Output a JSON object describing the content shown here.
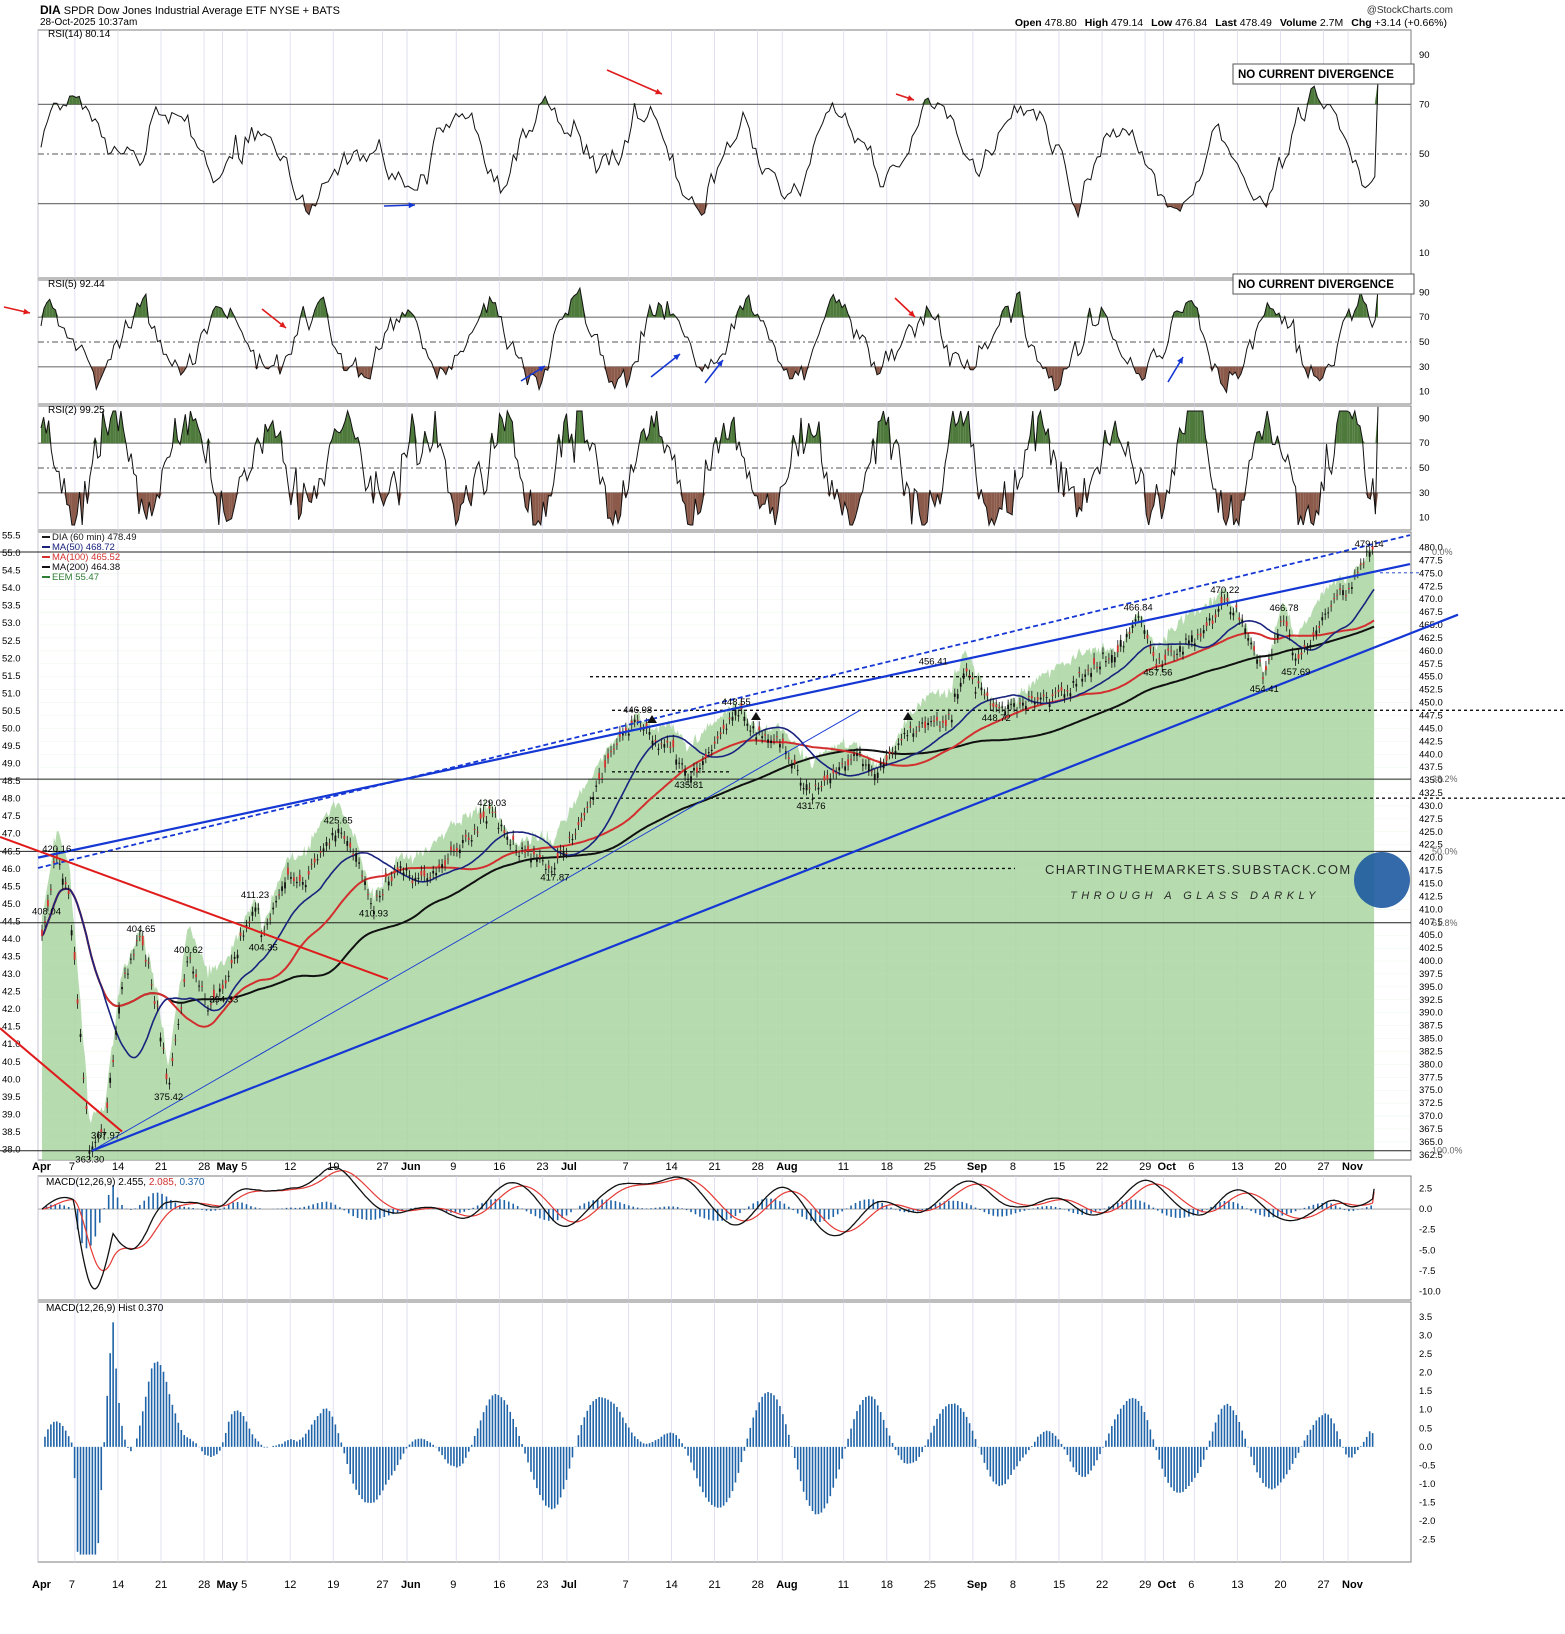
{
  "header": {
    "symbol": "DIA",
    "name": "SPDR Dow Jones Industrial Average ETF",
    "exchange": "NYSE + BATS",
    "timestamp": "28-Oct-2025 10:37am",
    "provider": "@StockCharts.com",
    "quote": [
      {
        "label": "Open",
        "value": "478.80"
      },
      {
        "label": "High",
        "value": "479.14"
      },
      {
        "label": "Low",
        "value": "476.84"
      },
      {
        "label": "Last",
        "value": "478.49"
      },
      {
        "label": "Volume",
        "value": "2.7M"
      },
      {
        "label": "Chg",
        "value": "+3.14 (+0.66%)"
      }
    ]
  },
  "x_axis": {
    "labels": [
      "Apr",
      "7",
      "14",
      "21",
      "28",
      "May",
      "5",
      "12",
      "19",
      "27",
      "Jun",
      "9",
      "16",
      "23",
      "Jul",
      "7",
      "14",
      "21",
      "28",
      "Aug",
      "11",
      "18",
      "25",
      "Sep",
      "8",
      "15",
      "22",
      "29",
      "Oct",
      "6",
      "13",
      "20",
      "27",
      "Nov"
    ],
    "bold": [
      "Apr",
      "May",
      "Jun",
      "Jul",
      "Aug",
      "Sep",
      "Oct",
      "Nov"
    ]
  },
  "annotations": {
    "divergence_note": "NO CURRENT DIVERGENCE",
    "watermark_site": "CHARTINGTHEMARKETS.SUBSTACK.COM",
    "watermark_tag": "THROUGH A GLASS DARKLY"
  },
  "chart_data": [
    {
      "type": "line",
      "id": "rsi14",
      "legend": "RSI(14) 80.14",
      "ylim": [
        0,
        100
      ],
      "ticks": [
        10,
        30,
        50,
        70,
        90
      ],
      "levels": [
        30,
        50,
        70
      ],
      "last": 80.14
    },
    {
      "type": "line",
      "id": "rsi5",
      "legend": "RSI(5) 92.44",
      "ylim": [
        0,
        100
      ],
      "ticks": [
        10,
        30,
        50,
        70,
        90
      ],
      "levels": [
        30,
        50,
        70
      ],
      "last": 92.44
    },
    {
      "type": "line",
      "id": "rsi2",
      "legend": "RSI(2) 99.25",
      "ylim": [
        0,
        100
      ],
      "ticks": [
        10,
        30,
        50,
        70,
        90
      ],
      "levels": [
        30,
        50,
        70
      ],
      "last": 99.25
    },
    {
      "type": "line",
      "id": "price",
      "ylim": [
        361.5,
        483
      ],
      "right_ticks": [
        "362.5",
        "365.0",
        "367.5",
        "370.0",
        "372.5",
        "375.0",
        "377.5",
        "380.0",
        "382.5",
        "385.0",
        "387.5",
        "390.0",
        "392.5",
        "395.0",
        "397.5",
        "400.0",
        "402.5",
        "405.0",
        "407.5",
        "410.0",
        "412.5",
        "415.0",
        "417.5",
        "420.0",
        "422.5",
        "425.0",
        "427.5",
        "430.0",
        "432.5",
        "435.0",
        "437.5",
        "440.0",
        "442.5",
        "445.0",
        "447.5",
        "450.0",
        "452.5",
        "455.0",
        "457.5",
        "460.0",
        "462.5",
        "465.0",
        "467.5",
        "470.0",
        "472.5",
        "475.0",
        "477.5",
        "480.0"
      ],
      "left_ticks": [
        "38.0",
        "38.5",
        "39.0",
        "39.5",
        "40.0",
        "40.5",
        "41.0",
        "41.5",
        "42.0",
        "42.5",
        "43.0",
        "43.5",
        "44.0",
        "44.5",
        "45.0",
        "45.5",
        "46.0",
        "46.5",
        "47.0",
        "47.5",
        "48.0",
        "48.5",
        "49.0",
        "49.5",
        "50.0",
        "50.5",
        "51.0",
        "51.5",
        "52.0",
        "52.5",
        "53.0",
        "53.5",
        "54.0",
        "54.5",
        "55.0",
        "55.5"
      ],
      "left_ylim": [
        37.7,
        55.6
      ],
      "legend": [
        {
          "label": "DIA (60 min) 478.49",
          "color": "#1a1a1a"
        },
        {
          "label": "MA(50) 468.72",
          "color": "#1a237e"
        },
        {
          "label": "MA(100) 465.52",
          "color": "#d32f2f"
        },
        {
          "label": "MA(200) 464.38",
          "color": "#111111"
        },
        {
          "label": "EEM 55.47",
          "color": "#2e7d32"
        }
      ],
      "fib_levels": [
        {
          "label": "0.0%",
          "value": 479.14
        },
        {
          "label": "38.2%",
          "value": 435.2
        },
        {
          "label": "50.0%",
          "value": 421.2
        },
        {
          "label": "61.8%",
          "value": 407.4
        },
        {
          "label": "100.0%",
          "value": 363.3
        }
      ],
      "swing_labels": [
        {
          "text": "363.30",
          "x": 6.0,
          "y": 363.3
        },
        {
          "text": "367.97",
          "x": 8.0,
          "y": 367.97
        },
        {
          "text": "408.04",
          "x": 0.5,
          "y": 408.04
        },
        {
          "text": "420.16",
          "x": 1.8,
          "y": 420.16
        },
        {
          "text": "404.65",
          "x": 12.5,
          "y": 404.65
        },
        {
          "text": "400.62",
          "x": 18.5,
          "y": 400.62
        },
        {
          "text": "375.42",
          "x": 16.0,
          "y": 375.42
        },
        {
          "text": "394.33",
          "x": 23.0,
          "y": 394.33
        },
        {
          "text": "411.23",
          "x": 27.0,
          "y": 411.23
        },
        {
          "text": "404.35",
          "x": 28.0,
          "y": 404.35
        },
        {
          "text": "425.65",
          "x": 37.5,
          "y": 425.65
        },
        {
          "text": "410.93",
          "x": 42.0,
          "y": 410.93
        },
        {
          "text": "429.03",
          "x": 57.0,
          "y": 429.03
        },
        {
          "text": "417.87",
          "x": 65.0,
          "y": 417.87
        },
        {
          "text": "446.98",
          "x": 75.5,
          "y": 446.98
        },
        {
          "text": "435.81",
          "x": 82.0,
          "y": 435.81
        },
        {
          "text": "448.55",
          "x": 88.0,
          "y": 448.55
        },
        {
          "text": "431.76",
          "x": 97.5,
          "y": 431.76
        },
        {
          "text": "456.41",
          "x": 113.0,
          "y": 456.41
        },
        {
          "text": "448.72",
          "x": 121.0,
          "y": 448.72
        },
        {
          "text": "466.84",
          "x": 139.0,
          "y": 466.84
        },
        {
          "text": "457.56",
          "x": 141.5,
          "y": 457.56
        },
        {
          "text": "470.22",
          "x": 150.0,
          "y": 470.22
        },
        {
          "text": "454.41",
          "x": 155.0,
          "y": 454.41
        },
        {
          "text": "457.69",
          "x": 159.0,
          "y": 457.69
        },
        {
          "text": "466.78",
          "x": 157.5,
          "y": 466.78
        },
        {
          "text": "479.14",
          "x": 168.3,
          "y": 479.14
        }
      ],
      "x_range_days": [
        0,
        170
      ],
      "last": 478.49
    },
    {
      "type": "line",
      "id": "macd",
      "legend": {
        "name": "MACD(12,26,9)",
        "macd": "2.455",
        "signal": "2.085",
        "hist": "0.370"
      },
      "ylim": [
        -11,
        4
      ],
      "ticks": [
        "-10.0",
        "-7.5",
        "-5.0",
        "-2.5",
        "0.0",
        "2.5"
      ]
    },
    {
      "type": "bar",
      "id": "macd_hist",
      "legend": "MACD(12,26,9) Hist 0.370",
      "ylim": [
        -3.1,
        3.9
      ],
      "ticks": [
        "-2.5",
        "-2.0",
        "-1.5",
        "-1.0",
        "-0.5",
        "0.0",
        "0.5",
        "1.0",
        "1.5",
        "2.0",
        "2.5",
        "3.0",
        "3.5"
      ],
      "last": 0.37
    }
  ],
  "colors": {
    "grid": "#d9d9ee",
    "border": "#7d7d7d",
    "rsi_over": "#4e7a3c",
    "rsi_under": "#8b5a4a",
    "trend_blue": "#1537d4",
    "trend_red": "#e01b1b",
    "eem_fill": "#a8d5a0",
    "macd_hist": "#1f63a8"
  }
}
